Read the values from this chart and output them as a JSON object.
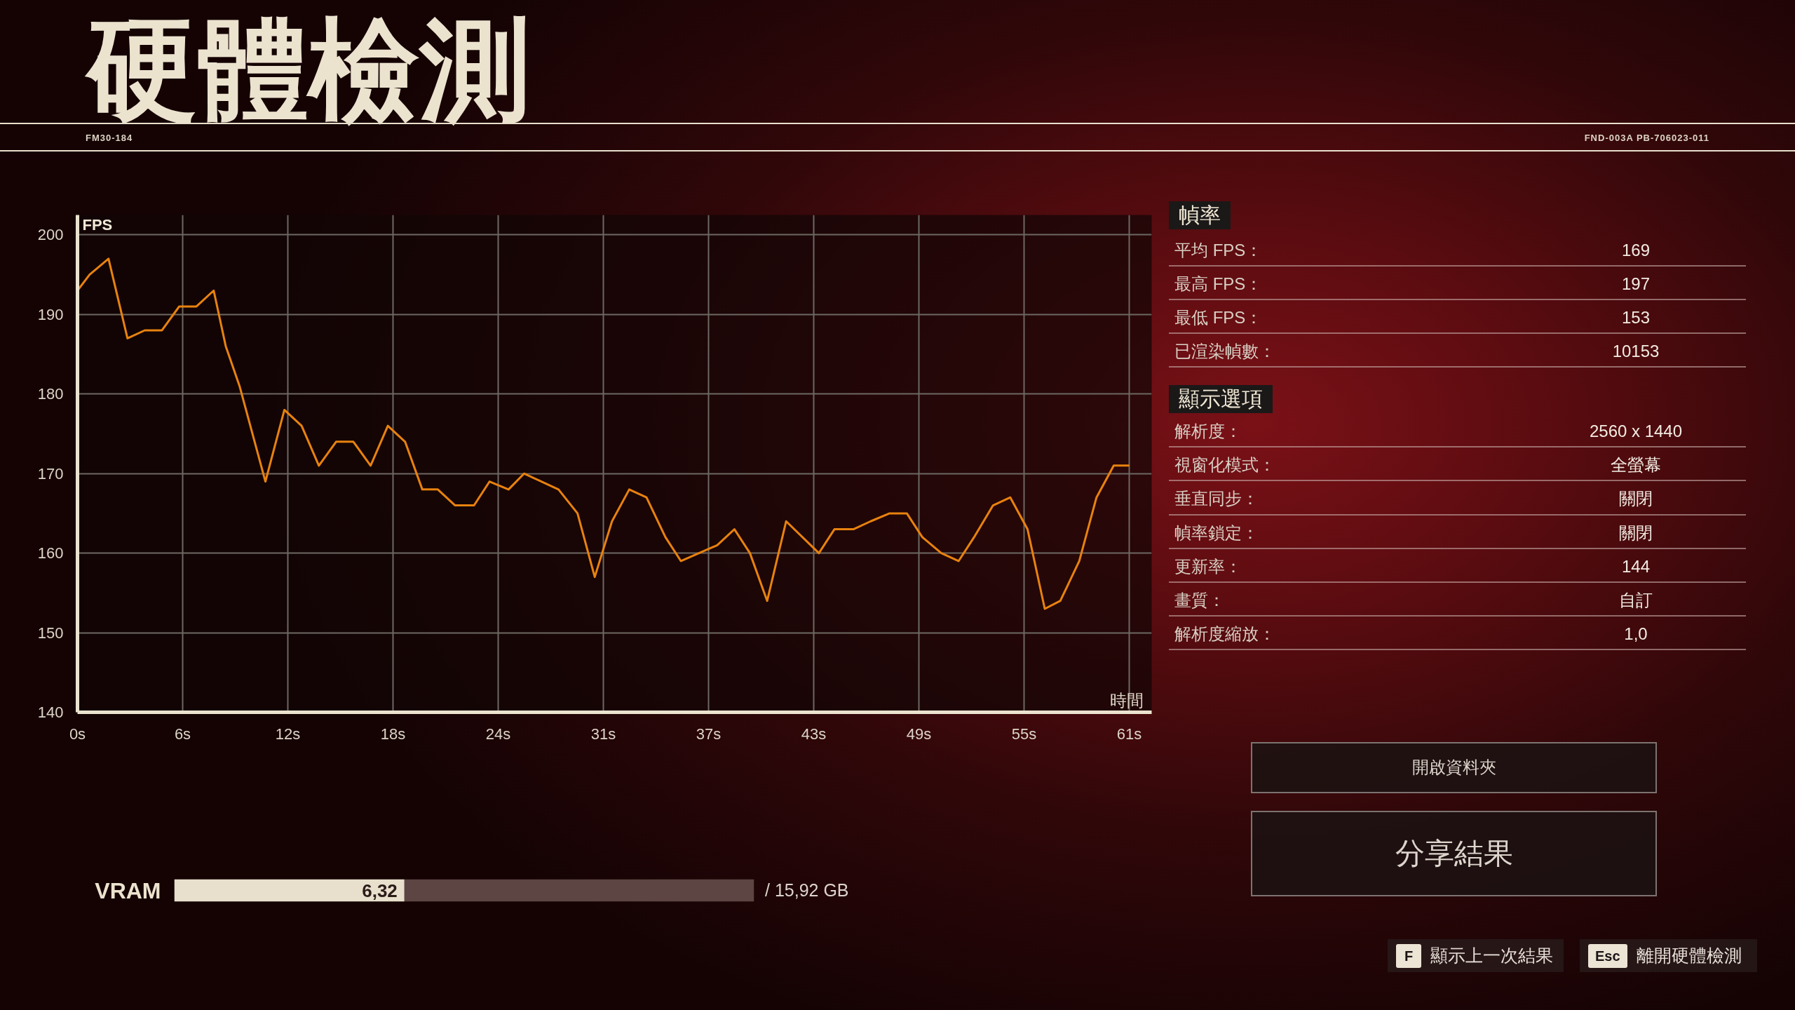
{
  "chart_data": [
    {
      "type": "other",
      "title": "硬體檢測",
      "annotations": [
        "FM30-184",
        "FND-003A PB-706023-011"
      ]
    },
    {
      "type": "line",
      "xlabel": "時間",
      "ylabel": "FPS",
      "color": "#e8820e",
      "x": [
        0,
        0.7,
        1.8,
        2.9,
        3.9,
        4.9,
        5.9,
        6.9,
        7.9,
        8.6,
        9.4,
        10.9,
        12.0,
        13.0,
        14.0,
        15.0,
        16.0,
        17.0,
        18.0,
        19.0,
        20.0,
        20.9,
        21.9,
        23.0,
        23.9,
        25.0,
        25.9,
        27.9,
        29.0,
        30.0,
        31.0,
        32.0,
        33.0,
        34.1,
        35.0,
        37.1,
        38.1,
        39.0,
        40.0,
        41.1,
        43.0,
        43.9,
        45.0,
        46.0,
        47.1,
        48.1,
        49.0,
        50.1,
        51.1,
        52.0,
        53.1,
        54.1,
        55.1,
        56.1,
        57.0,
        58.1,
        59.1,
        60.1,
        61.0
      ],
      "values": [
        193,
        195,
        197,
        187,
        188,
        188,
        191,
        191,
        193,
        186,
        181,
        169,
        178,
        176,
        171,
        174,
        174,
        171,
        176,
        174,
        168,
        168,
        166,
        166,
        169,
        168,
        170,
        168,
        165,
        157,
        164,
        168,
        167,
        162,
        159,
        161,
        163,
        160,
        154,
        164,
        160,
        163,
        163,
        164,
        165,
        165,
        162,
        160,
        159,
        162,
        166,
        167,
        163,
        153,
        154,
        159,
        167,
        171,
        171
      ],
      "xlim": [
        0,
        62.3
      ],
      "ylim": [
        140,
        202.5
      ],
      "xticks": [
        {
          "value": 0,
          "label": "0s"
        },
        {
          "value": 6.1,
          "label": "6s"
        },
        {
          "value": 12.2,
          "label": "12s"
        },
        {
          "value": 18.3,
          "label": "18s"
        },
        {
          "value": 24.4,
          "label": "24s"
        },
        {
          "value": 30.5,
          "label": "31s"
        },
        {
          "value": 36.6,
          "label": "37s"
        },
        {
          "value": 42.7,
          "label": "43s"
        },
        {
          "value": 48.8,
          "label": "49s"
        },
        {
          "value": 54.9,
          "label": "55s"
        },
        {
          "value": 61,
          "label": "61s"
        }
      ],
      "yticks": [
        140,
        150,
        160,
        170,
        180,
        190,
        200
      ],
      "grid": true
    },
    {
      "type": "other",
      "title": "幀率",
      "annotations": [
        "平均 FPS：",
        "169",
        "最高 FPS：",
        "197",
        "最低 FPS：",
        "153",
        "已渲染幀數：",
        "10153"
      ]
    },
    {
      "type": "other",
      "title": "顯示選項",
      "annotations": [
        "解析度：",
        "2560 x 1440",
        "視窗化模式：",
        "全螢幕",
        "垂直同步：",
        "關閉",
        "幀率鎖定：",
        "關閉",
        "更新率：",
        "144",
        "畫質：",
        "自訂",
        "解析度縮放：",
        "1,0"
      ]
    },
    {
      "type": "bar",
      "orientation": "horizontal",
      "stacked": true,
      "categories": [
        "VRAM"
      ],
      "series": [
        {
          "color": "#e8e0cc",
          "values": [
            6.32
          ],
          "value_labels": [
            "6,32"
          ]
        },
        {
          "color": "#5c4542",
          "values": [
            9.6
          ]
        }
      ],
      "xlim": [
        0,
        15.92
      ],
      "annotations": [
        "/ 15,92 GB"
      ],
      "tick_labels": "y"
    },
    {
      "type": "other",
      "annotations": [
        "開啟資料夾",
        "分享結果",
        "F",
        "顯示上一次結果",
        "Esc",
        "離開硬體檢測"
      ]
    }
  ]
}
